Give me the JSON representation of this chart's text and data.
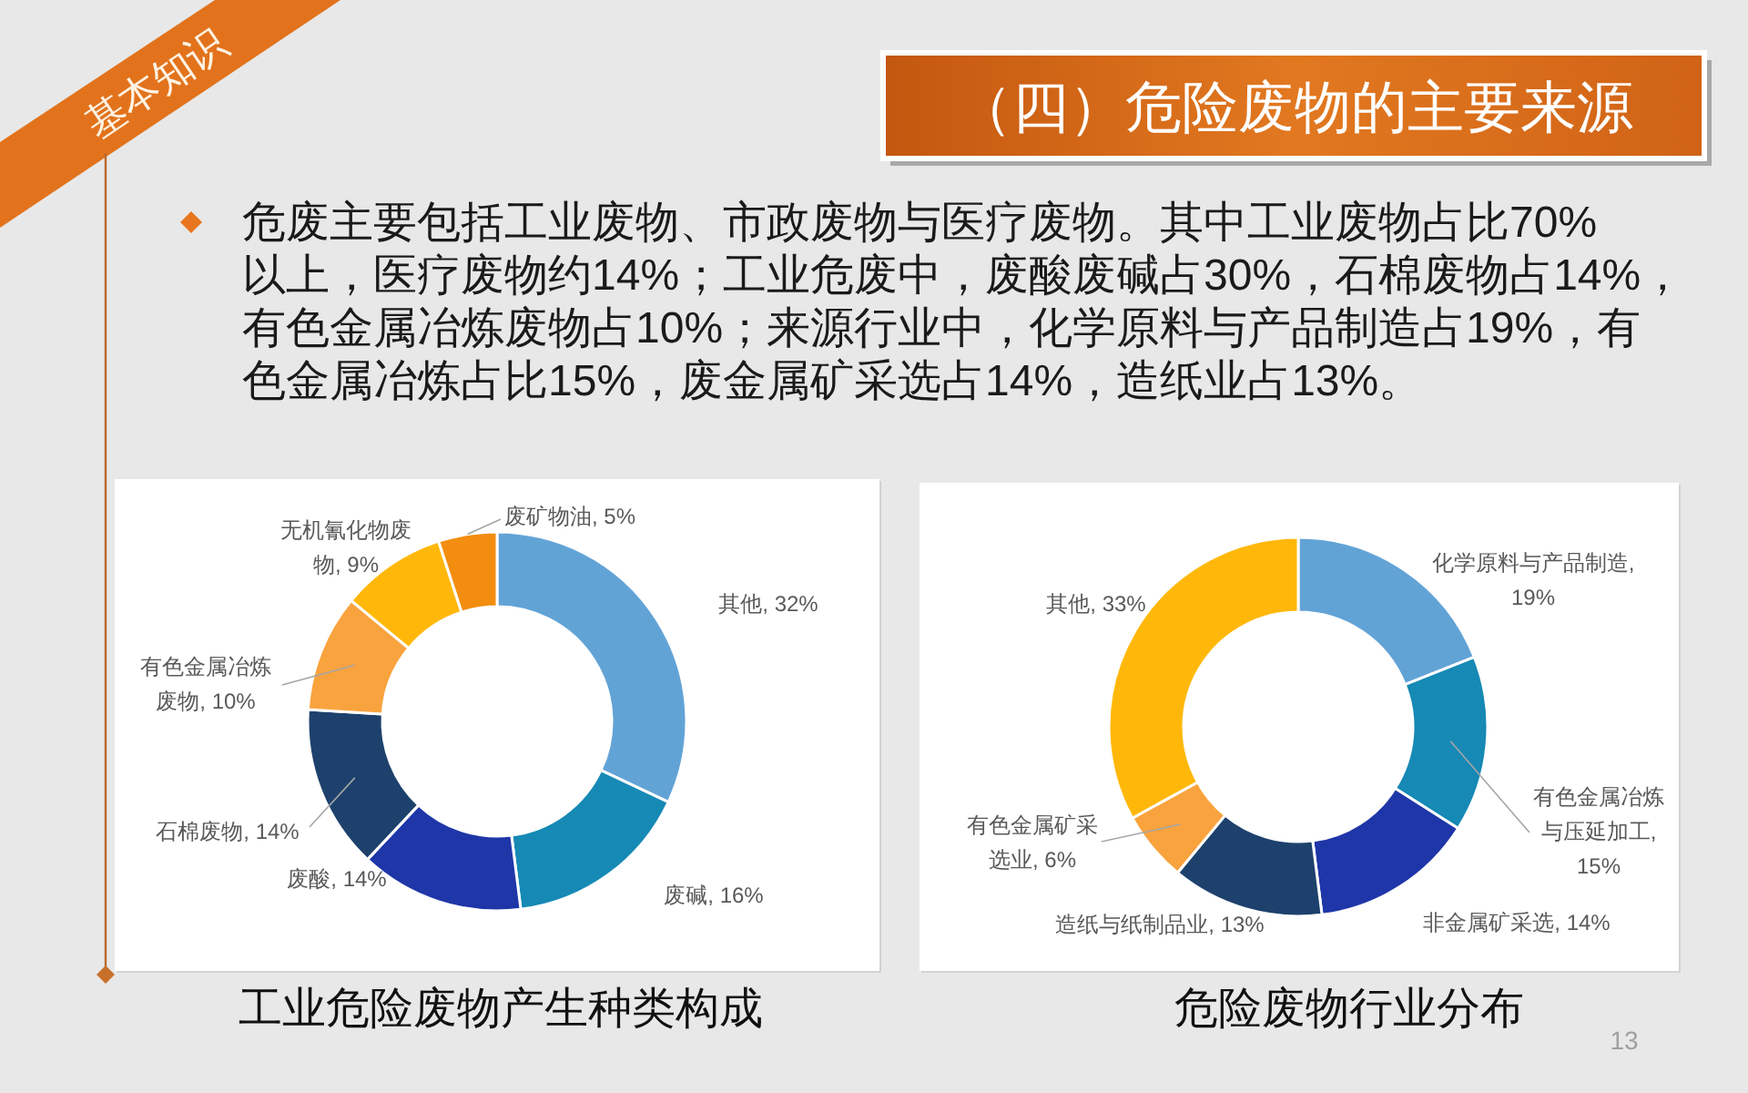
{
  "chart_data": [
    {
      "type": "other",
      "title": "（四）危险废物的主要来源",
      "annotations": [
        "基本知识",
        "危废主要包括工业废物、市政废物与医疗废物。其中工业废物占比70%以上，医疗废物约14%；工业危废中，废酸废碱占30%，石棉废物占14%，有色金属冶炼废物占10%；来源行业中，化学原料与产品制造占19%，有色金属冶炼占比15%，废金属矿采选占14%，造纸业占13%。",
        "13"
      ]
    },
    {
      "type": "donut",
      "title": "工业危险废物产生种类构成",
      "categories": [
        "其他",
        "废碱",
        "废酸",
        "石棉废物",
        "有色金属冶炼废物",
        "无机氰化物废物",
        "废矿物油"
      ],
      "values": [
        32,
        16,
        14,
        14,
        10,
        9,
        5
      ],
      "colors": [
        "#62a3d6",
        "#1689b5",
        "#1f36a8",
        "#1d416c",
        "#f9a33e",
        "#ffb80a",
        "#f38d0f"
      ],
      "value_labels": [
        ", 32%",
        ", 16%",
        ", 14%",
        ", 14%",
        ", 10%",
        ", 9%",
        ", 5%"
      ]
    },
    {
      "type": "donut",
      "title": "危险废物行业分布",
      "categories": [
        "化学原料与产品制造",
        "有色金属冶炼与压延加工",
        "非金属矿采选",
        "造纸与纸制品业",
        "有色金属矿采选业",
        "其他"
      ],
      "values": [
        19,
        15,
        14,
        13,
        6,
        33
      ],
      "colors": [
        "#62a3d6",
        "#1689b5",
        "#1f36a8",
        "#1d416c",
        "#f9a33e",
        "#ffb80a"
      ],
      "value_labels": [
        ", 19%",
        ", 15%",
        ", 14%",
        ", 13%",
        ", 6%",
        ", 33%"
      ]
    }
  ]
}
